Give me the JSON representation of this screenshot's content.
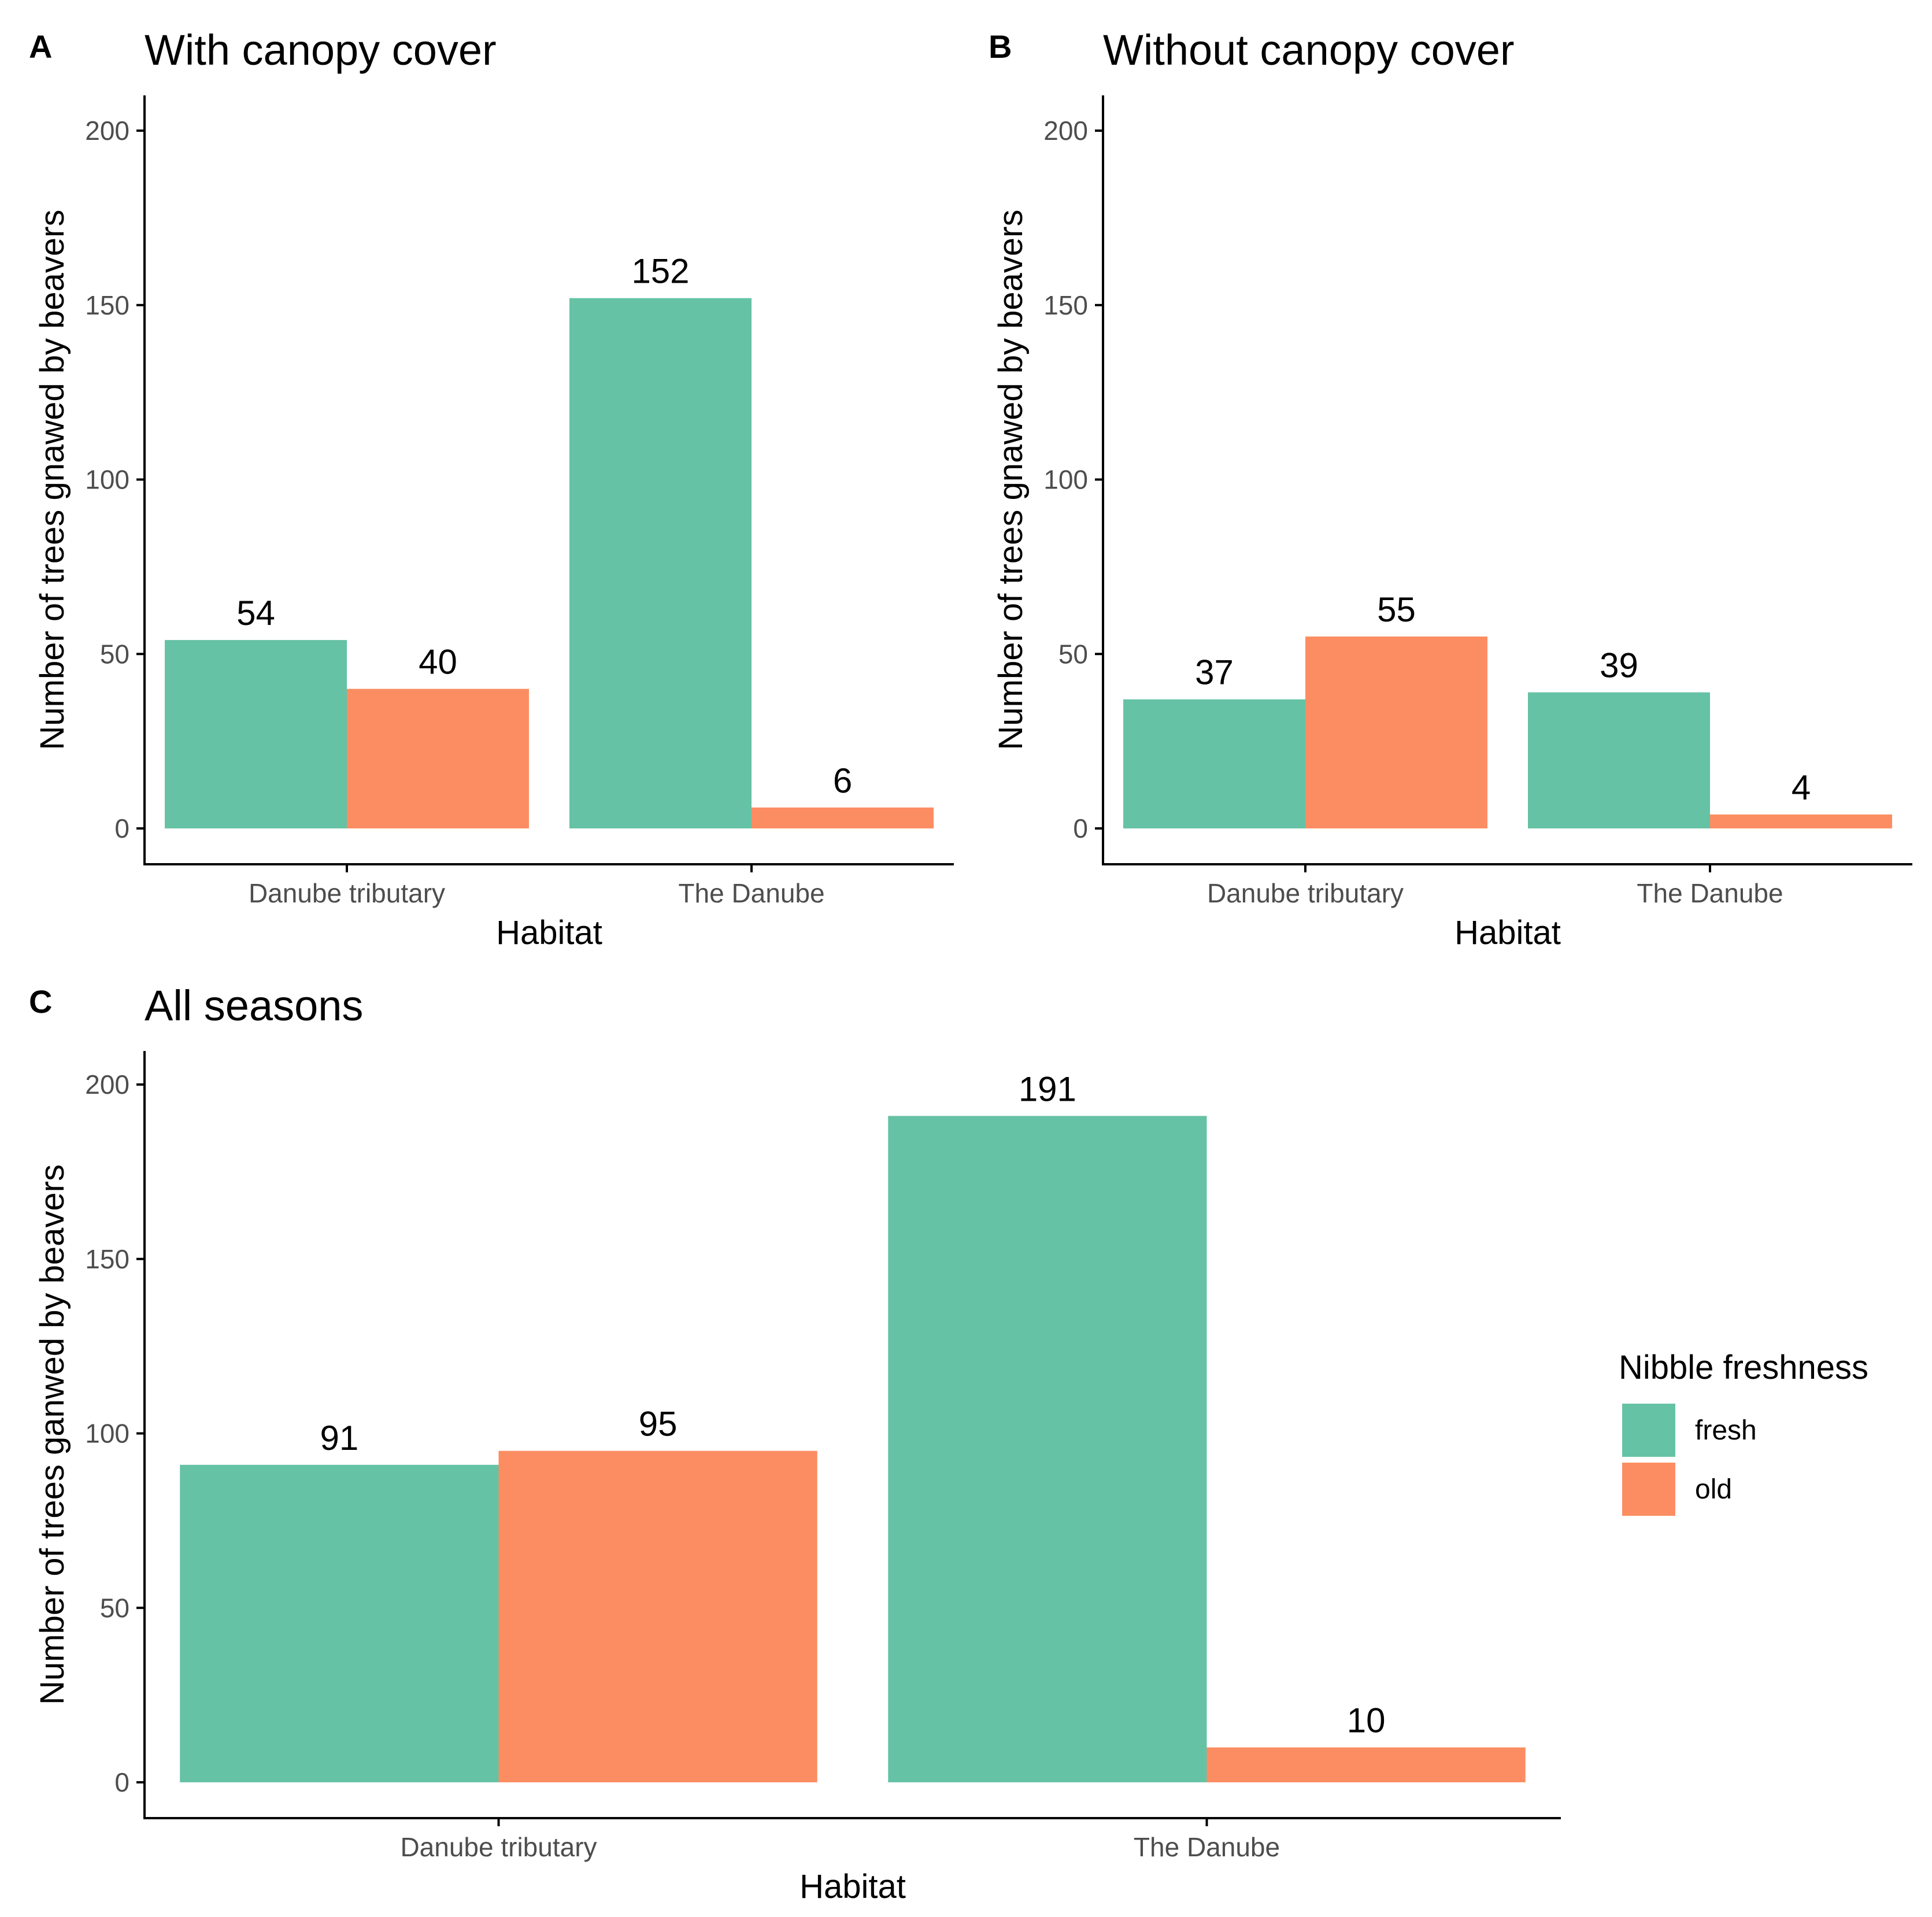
{
  "colors": {
    "fresh": "#66c2a5",
    "old": "#fc8d62",
    "axis": "#000000",
    "tick_text": "#4d4d4d"
  },
  "legend": {
    "title": "Nibble freshness",
    "items": [
      {
        "key": "fresh",
        "label": "fresh"
      },
      {
        "key": "old",
        "label": "old"
      }
    ]
  },
  "chart_data": [
    {
      "id": "A",
      "letter": "A",
      "type": "bar",
      "title": "With canopy cover",
      "xlabel": "Habitat",
      "ylabel": "Number of trees gnawed by beavers",
      "ylim": [
        0,
        200
      ],
      "yticks": [
        "0",
        "50",
        "100",
        "150",
        "200"
      ],
      "categories": [
        "Danube tributary",
        "The Danube"
      ],
      "series": [
        {
          "name": "fresh",
          "values": [
            54,
            152
          ],
          "labels": [
            "54",
            "152"
          ]
        },
        {
          "name": "old",
          "values": [
            40,
            6
          ],
          "labels": [
            "40",
            "6"
          ]
        }
      ]
    },
    {
      "id": "B",
      "letter": "B",
      "type": "bar",
      "title": "Without canopy cover",
      "xlabel": "Habitat",
      "ylabel": "Number of trees gnawed by beavers",
      "ylim": [
        0,
        200
      ],
      "yticks": [
        "0",
        "50",
        "100",
        "150",
        "200"
      ],
      "categories": [
        "Danube tributary",
        "The Danube"
      ],
      "series": [
        {
          "name": "fresh",
          "values": [
            37,
            39
          ],
          "labels": [
            "37",
            "39"
          ]
        },
        {
          "name": "old",
          "values": [
            55,
            4
          ],
          "labels": [
            "55",
            "4"
          ]
        }
      ]
    },
    {
      "id": "C",
      "letter": "C",
      "type": "bar",
      "title": "All seasons",
      "xlabel": "Habitat",
      "ylabel": "Number of trees ganwed by beavers",
      "ylim": [
        0,
        200
      ],
      "yticks": [
        "0",
        "50",
        "100",
        "150",
        "200"
      ],
      "categories": [
        "Danube tributary",
        "The Danube"
      ],
      "series": [
        {
          "name": "fresh",
          "values": [
            91,
            191
          ],
          "labels": [
            "91",
            "191"
          ]
        },
        {
          "name": "old",
          "values": [
            95,
            10
          ],
          "labels": [
            "95",
            "10"
          ]
        }
      ]
    }
  ]
}
